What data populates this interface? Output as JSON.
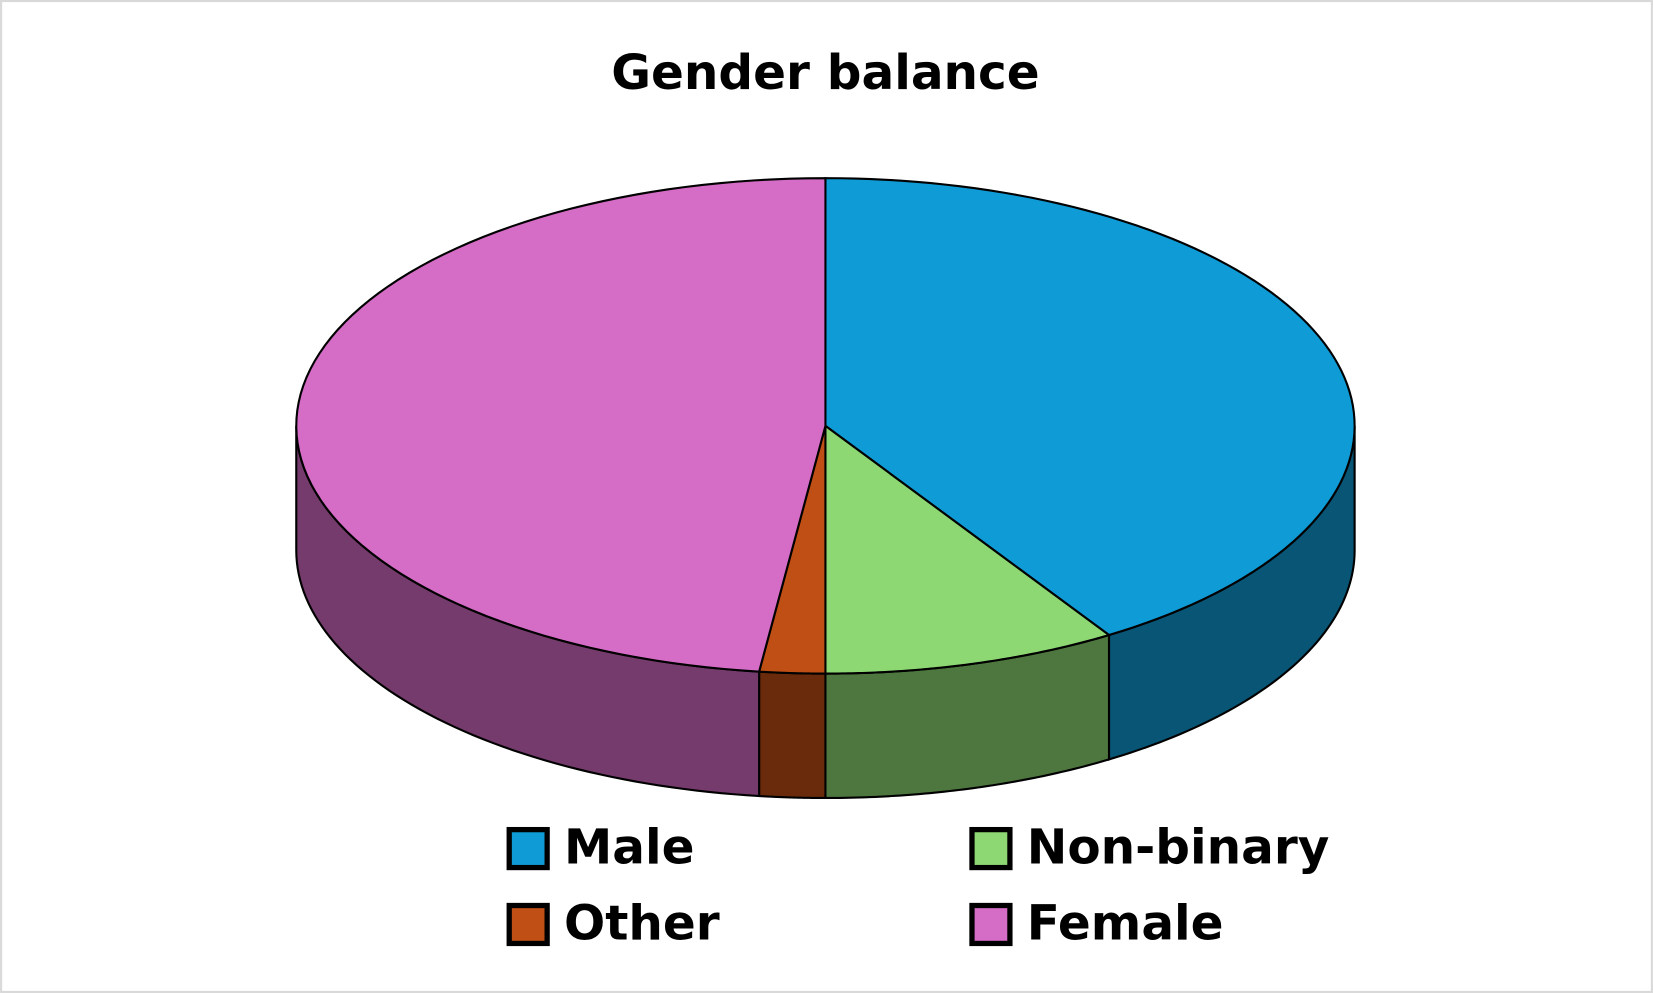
{
  "chart_data": {
    "type": "pie3d",
    "title": "Gender balance",
    "categories": [
      "Male",
      "Non-binary",
      "Other",
      "Female"
    ],
    "values": [
      41,
      9,
      2,
      48
    ],
    "colors": [
      "#0f9bd6",
      "#8ed873",
      "#c04f15",
      "#d56cc6"
    ],
    "legend": "bottom"
  }
}
